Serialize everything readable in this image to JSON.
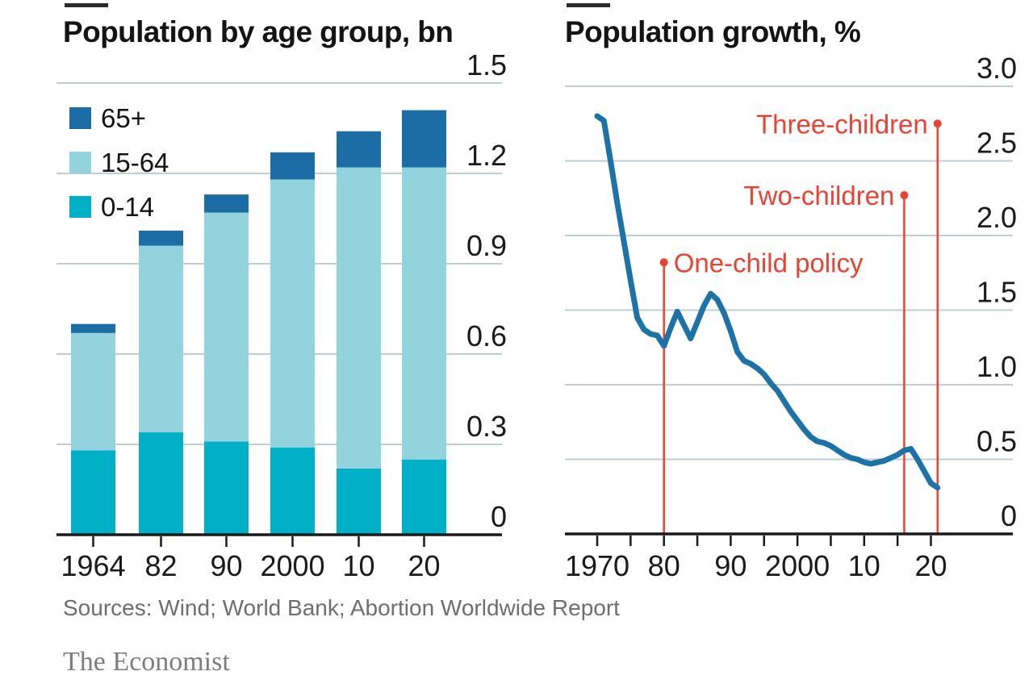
{
  "colors": {
    "grid": "#c0ccd4",
    "axis": "#1a1a1a",
    "tick_label": "#1a1a1a",
    "annotation_red": "#ea4233",
    "title_dark": "#141414"
  },
  "chart_data": [
    {
      "type": "bar",
      "stacked": true,
      "panel": "left",
      "title": "Population by age group, bn",
      "categories": [
        "1964",
        "82",
        "90",
        "2000",
        "10",
        "20"
      ],
      "series": [
        {
          "name": "0-14",
          "color": "#00b0c7",
          "values": [
            0.28,
            0.34,
            0.31,
            0.29,
            0.22,
            0.25
          ]
        },
        {
          "name": "15-64",
          "color": "#92d3de",
          "values": [
            0.39,
            0.62,
            0.76,
            0.89,
            1.0,
            0.97
          ]
        },
        {
          "name": "65+",
          "color": "#1c6ca6",
          "values": [
            0.03,
            0.05,
            0.06,
            0.09,
            0.12,
            0.19
          ]
        }
      ],
      "legend_order_series_index": [
        2,
        1,
        0
      ],
      "ylim": [
        0,
        1.5
      ],
      "yticks": [
        0,
        0.3,
        0.6,
        0.9,
        1.2,
        1.5
      ],
      "ytick_labels": [
        "0",
        "0.3",
        "0.6",
        "0.9",
        "1.2",
        "1.5"
      ],
      "grid": true,
      "legend_position": "top-left"
    },
    {
      "type": "line",
      "panel": "right",
      "title": "Population growth, %",
      "color": "#1d72a8",
      "x": [
        1970,
        1971,
        1972,
        1973,
        1974,
        1975,
        1976,
        1977,
        1978,
        1979,
        1980,
        1981,
        1982,
        1983,
        1984,
        1985,
        1986,
        1987,
        1988,
        1989,
        1990,
        1991,
        1992,
        1993,
        1994,
        1995,
        1996,
        1997,
        1998,
        1999,
        2000,
        2001,
        2002,
        2003,
        2004,
        2005,
        2006,
        2007,
        2008,
        2009,
        2010,
        2011,
        2012,
        2013,
        2014,
        2015,
        2016,
        2017,
        2018,
        2019,
        2020,
        2021
      ],
      "values": [
        2.8,
        2.77,
        2.5,
        2.22,
        1.96,
        1.7,
        1.45,
        1.37,
        1.34,
        1.33,
        1.26,
        1.38,
        1.49,
        1.4,
        1.31,
        1.42,
        1.53,
        1.61,
        1.57,
        1.48,
        1.36,
        1.22,
        1.16,
        1.14,
        1.11,
        1.07,
        1.01,
        0.96,
        0.89,
        0.82,
        0.76,
        0.7,
        0.65,
        0.62,
        0.61,
        0.59,
        0.56,
        0.53,
        0.51,
        0.5,
        0.48,
        0.47,
        0.48,
        0.49,
        0.51,
        0.53,
        0.56,
        0.57,
        0.5,
        0.42,
        0.34,
        0.31
      ],
      "ylim": [
        0,
        3.0
      ],
      "yticks": [
        0,
        0.5,
        1.0,
        1.5,
        2.0,
        2.5,
        3.0
      ],
      "ytick_labels": [
        "0",
        "0.5",
        "1.0",
        "1.5",
        "2.0",
        "2.5",
        "3.0"
      ],
      "xticks_minor_years": [
        1970,
        1975,
        1980,
        1985,
        1990,
        1995,
        2000,
        2005,
        2010,
        2015,
        2020
      ],
      "xtick_labels": [
        {
          "label": "1970",
          "year": 1970
        },
        {
          "label": "80",
          "year": 1980
        },
        {
          "label": "90",
          "year": 1990
        },
        {
          "label": "2000",
          "year": 2000
        },
        {
          "label": "10",
          "year": 2010
        },
        {
          "label": "20",
          "year": 2020
        }
      ],
      "grid": true,
      "annotations": [
        {
          "label": "One-child policy",
          "year": 1980,
          "dot_value": 1.82,
          "text_side": "right"
        },
        {
          "label": "Two-children",
          "year": 2016,
          "dot_value": 2.27,
          "text_side": "left"
        },
        {
          "label": "Three-children",
          "year": 2021,
          "dot_value": 2.75,
          "text_side": "left"
        }
      ]
    }
  ],
  "footer": {
    "sources": "Sources: Wind; World Bank; Abortion Worldwide Report",
    "brand": "The Economist"
  }
}
